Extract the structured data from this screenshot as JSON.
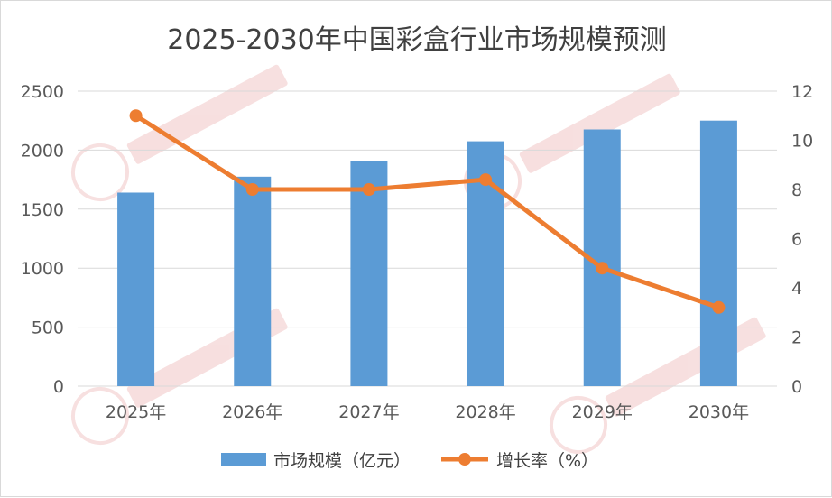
{
  "chart_data": {
    "type": "bar+line",
    "title": "2025-2030年中国彩盒行业市场规模预测",
    "categories": [
      "2025年",
      "2026年",
      "2027年",
      "2028年",
      "2029年",
      "2030年"
    ],
    "series": [
      {
        "name": "市场规模（亿元）",
        "type": "bar",
        "axis": "left",
        "color": "#5b9bd5",
        "values": [
          1640,
          1775,
          1910,
          2075,
          2175,
          2250
        ]
      },
      {
        "name": "增长率（%）",
        "type": "line",
        "axis": "right",
        "color": "#ed7d31",
        "values": [
          11.0,
          8.0,
          8.0,
          8.4,
          4.8,
          3.2
        ]
      }
    ],
    "left_axis": {
      "ylim": [
        0,
        2500
      ],
      "ticks": [
        "0",
        "500",
        "1000",
        "1500",
        "2000",
        "2500"
      ]
    },
    "right_axis": {
      "ylim": [
        0,
        12
      ],
      "ticks": [
        "0",
        "2",
        "4",
        "6",
        "8",
        "10",
        "12"
      ]
    },
    "grid": true,
    "legend_position": "bottom"
  }
}
